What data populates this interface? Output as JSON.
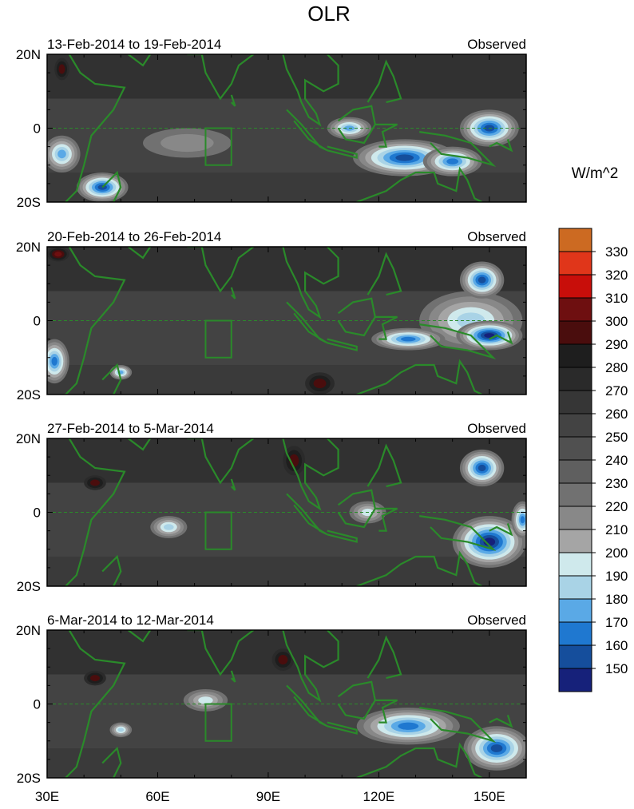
{
  "title": "OLR",
  "unit_label": "W/m^2",
  "panel_status": "Observed",
  "chart_data": {
    "type": "heatmap",
    "variable": "OLR",
    "units": "W/m^2",
    "x_range": [
      30,
      160
    ],
    "y_range": [
      -20,
      20
    ],
    "x_ticks": [
      {
        "value": 30,
        "label": "30E"
      },
      {
        "value": 60,
        "label": "60E"
      },
      {
        "value": 90,
        "label": "90E"
      },
      {
        "value": 120,
        "label": "120E"
      },
      {
        "value": 150,
        "label": "150E"
      }
    ],
    "y_ticks": [
      {
        "value": 20,
        "label": "20N"
      },
      {
        "value": 0,
        "label": "0"
      },
      {
        "value": -20,
        "label": "20S"
      }
    ],
    "colorbar": {
      "labels": [
        "330",
        "320",
        "310",
        "300",
        "290",
        "280",
        "270",
        "260",
        "250",
        "240",
        "230",
        "220",
        "210",
        "200",
        "190",
        "180",
        "170",
        "160",
        "150"
      ],
      "levels": [
        330,
        320,
        310,
        300,
        290,
        280,
        270,
        260,
        250,
        240,
        230,
        220,
        210,
        200,
        190,
        180,
        170,
        160,
        150
      ],
      "colors": [
        "#cc6a22",
        "#e0361a",
        "#c80e0a",
        "#6e0f10",
        "#4a0d0d",
        "#1e1e1e",
        "#2a2a2a",
        "#363636",
        "#434343",
        "#505050",
        "#5f5f5f",
        "#717171",
        "#888888",
        "#a5a5a5",
        "#cfe9ec",
        "#a9d3e6",
        "#5aa9e6",
        "#1f78d0",
        "#154e9c",
        "#16217a"
      ]
    },
    "panels": [
      {
        "dates": "13-Feb-2014 to 19-Feb-2014",
        "status": "Observed",
        "features": [
          {
            "lon": 45,
            "lat": -16,
            "min_olr": 160,
            "rx": 7,
            "ry": 4
          },
          {
            "lon": 34,
            "lat": -7,
            "min_olr": 180,
            "rx": 5,
            "ry": 5
          },
          {
            "lon": 127,
            "lat": -8,
            "min_olr": 160,
            "rx": 14,
            "ry": 5
          },
          {
            "lon": 150,
            "lat": 0,
            "min_olr": 160,
            "rx": 8,
            "ry": 5
          },
          {
            "lon": 112,
            "lat": 0,
            "min_olr": 180,
            "rx": 6,
            "ry": 3
          },
          {
            "lon": 140,
            "lat": -9,
            "min_olr": 170,
            "rx": 8,
            "ry": 4
          },
          {
            "lon": 68,
            "lat": -4,
            "min_olr": 220,
            "rx": 12,
            "ry": 4
          },
          {
            "lon": 34,
            "lat": 16,
            "min_olr": 300,
            "rx": 2,
            "ry": 3
          }
        ]
      },
      {
        "dates": "20-Feb-2014 to 26-Feb-2014",
        "status": "Observed",
        "features": [
          {
            "lon": 145,
            "lat": 0,
            "min_olr": 190,
            "rx": 14,
            "ry": 8
          },
          {
            "lon": 148,
            "lat": 11,
            "min_olr": 160,
            "rx": 6,
            "ry": 5
          },
          {
            "lon": 150,
            "lat": -4,
            "min_olr": 150,
            "rx": 9,
            "ry": 4
          },
          {
            "lon": 128,
            "lat": -5,
            "min_olr": 170,
            "rx": 10,
            "ry": 3
          },
          {
            "lon": 32,
            "lat": -11,
            "min_olr": 170,
            "rx": 4,
            "ry": 6
          },
          {
            "lon": 50,
            "lat": -14,
            "min_olr": 180,
            "rx": 3,
            "ry": 2
          },
          {
            "lon": 33,
            "lat": 18,
            "min_olr": 310,
            "rx": 3,
            "ry": 2
          },
          {
            "lon": 104,
            "lat": -17,
            "min_olr": 300,
            "rx": 4,
            "ry": 3
          }
        ]
      },
      {
        "dates": "27-Feb-2014 to 5-Mar-2014",
        "status": "Observed",
        "features": [
          {
            "lon": 148,
            "lat": 12,
            "min_olr": 160,
            "rx": 6,
            "ry": 5
          },
          {
            "lon": 150,
            "lat": -8,
            "min_olr": 150,
            "rx": 10,
            "ry": 7
          },
          {
            "lon": 159,
            "lat": -2,
            "min_olr": 170,
            "rx": 3,
            "ry": 5
          },
          {
            "lon": 63,
            "lat": -4,
            "min_olr": 190,
            "rx": 5,
            "ry": 3
          },
          {
            "lon": 117,
            "lat": 0,
            "min_olr": 200,
            "rx": 5,
            "ry": 3
          },
          {
            "lon": 43,
            "lat": 8,
            "min_olr": 300,
            "rx": 3,
            "ry": 2
          },
          {
            "lon": 97,
            "lat": 14,
            "min_olr": 300,
            "rx": 3,
            "ry": 4
          }
        ]
      },
      {
        "dates": "6-Mar-2014 to 12-Mar-2014",
        "status": "Observed",
        "features": [
          {
            "lon": 128,
            "lat": -6,
            "min_olr": 170,
            "rx": 14,
            "ry": 5
          },
          {
            "lon": 152,
            "lat": -12,
            "min_olr": 160,
            "rx": 9,
            "ry": 6
          },
          {
            "lon": 73,
            "lat": 1,
            "min_olr": 200,
            "rx": 6,
            "ry": 3
          },
          {
            "lon": 50,
            "lat": -7,
            "min_olr": 190,
            "rx": 3,
            "ry": 2
          },
          {
            "lon": 43,
            "lat": 7,
            "min_olr": 300,
            "rx": 3,
            "ry": 2
          },
          {
            "lon": 94,
            "lat": 12,
            "min_olr": 300,
            "rx": 3,
            "ry": 3
          }
        ]
      }
    ]
  }
}
